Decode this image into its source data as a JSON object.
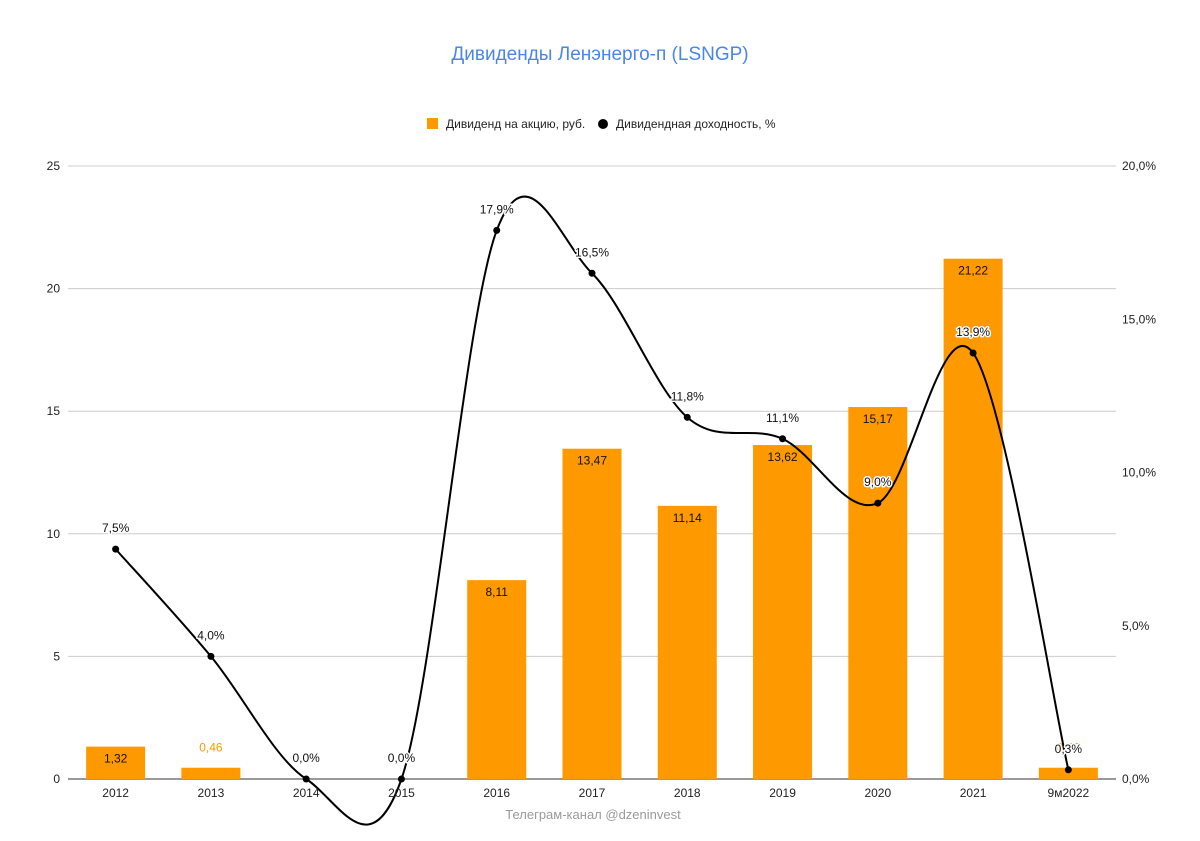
{
  "chart_data": {
    "type": "bar",
    "title": "Дивиденды Ленэнерго-п (LSNGP)",
    "categories": [
      "2012",
      "2013",
      "2014",
      "2015",
      "2016",
      "2017",
      "2018",
      "2019",
      "2020",
      "2021",
      "9м2022"
    ],
    "series": [
      {
        "name": "Дивиденд на акцию, руб.",
        "type": "bar",
        "axis": "left",
        "values": [
          1.32,
          0.46,
          0,
          0,
          8.11,
          13.47,
          11.14,
          13.62,
          15.17,
          21.22,
          0.46
        ],
        "labels": [
          "1,32",
          "0,46",
          "",
          "",
          "8,11",
          "13,47",
          "11,14",
          "13,62",
          "15,17",
          "21,22",
          "0,46"
        ]
      },
      {
        "name": "Дивидендная доходность, %",
        "type": "line",
        "axis": "right",
        "values": [
          7.5,
          4.0,
          0.0,
          0.0,
          17.9,
          16.5,
          11.8,
          11.1,
          9.0,
          13.9,
          0.3
        ],
        "labels": [
          "7,5%",
          "4,0%",
          "0,0%",
          "0,0%",
          "17,9%",
          "16,5%",
          "11,8%",
          "11,1%",
          "9,0%",
          "13,9%",
          "0,3%"
        ]
      }
    ],
    "y_left": {
      "min": 0,
      "max": 25,
      "ticks": [
        0,
        5,
        10,
        15,
        20,
        25
      ],
      "tick_labels": [
        "0",
        "5",
        "10",
        "15",
        "20",
        "25"
      ]
    },
    "y_right": {
      "min": 0,
      "max": 20,
      "ticks": [
        0,
        5,
        10,
        15,
        20
      ],
      "tick_labels": [
        "0,0%",
        "5,0%",
        "10,0%",
        "15,0%",
        "20,0%"
      ]
    },
    "grid": true,
    "legend_position": "top-center",
    "colors": {
      "bar": "#ff9900",
      "line": "#000000",
      "title": "#4a86e8",
      "grid": "#cccccc",
      "light_label": "#ff9900",
      "dark_label": "#111111"
    }
  },
  "footer": "Телеграм-канал @dzeninvest"
}
